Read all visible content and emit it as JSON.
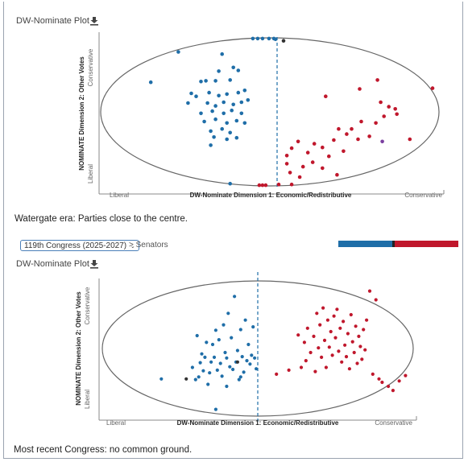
{
  "colors": {
    "democrat": "#1f6ea8",
    "republican": "#c0172c",
    "independent": "#333333",
    "other": "#7b3fa0",
    "ellipse": "#666666",
    "midline": "#1f6ea8",
    "bar_blue": "#1f6ea8",
    "bar_sep": "#222222",
    "bar_red": "#c0172c"
  },
  "plot1": {
    "title": "DW-Nominate Plot",
    "download_icon": "download-icon",
    "x_label": "DW-Nominate Dimension 1: Economic/Redistributive",
    "x_left": "Liberal",
    "x_right": "Conservative",
    "y_label": "NOMINATE Dimension 2: Other Votes",
    "y_top": "Conservative",
    "y_bottom": "Liberal",
    "caption": "Watergate era: Parties close to the centre."
  },
  "plot2": {
    "selector_value": "119th Congress (2025-2027)",
    "breadcrumb": "> Senators",
    "title": "DW-Nominate Plot",
    "download_icon": "download-icon",
    "x_label": "DW-Nominate Dimension 1: Economic/Redistributive",
    "x_left": "Liberal",
    "x_right": "Conservative",
    "y_label": "NOMINATE Dimension 2: Other Votes",
    "y_top": "Conservative",
    "y_bottom": "Liberal",
    "caption": "Most recent Congress: no common ground.",
    "party_split": {
      "democrat": 0.45,
      "independent": 0.02,
      "republican": 0.53
    }
  },
  "chart_data": [
    {
      "type": "scatter",
      "title": "DW-Nominate Plot",
      "xlabel": "DW-Nominate Dimension 1: Economic/Redistributive",
      "ylabel": "NOMINATE Dimension 2: Other Votes",
      "xlim": [
        -1,
        1
      ],
      "ylim": [
        -1,
        1
      ],
      "midline_x": 0.0,
      "boundary": "unit circle",
      "series": [
        {
          "party": "democrat",
          "points": [
            [
              -0.15,
              0.99
            ],
            [
              -0.12,
              0.99
            ],
            [
              -0.09,
              0.99
            ],
            [
              -0.05,
              0.99
            ],
            [
              -0.02,
              0.99
            ],
            [
              -0.01,
              0.98
            ],
            [
              -0.61,
              0.81
            ],
            [
              -0.34,
              0.78
            ],
            [
              -0.78,
              0.4
            ],
            [
              -0.47,
              0.41
            ],
            [
              -0.44,
              0.42
            ],
            [
              -0.38,
              0.42
            ],
            [
              -0.29,
              0.43
            ],
            [
              -0.53,
              0.25
            ],
            [
              -0.5,
              0.21
            ],
            [
              -0.42,
              0.26
            ],
            [
              -0.36,
              0.22
            ],
            [
              -0.31,
              0.24
            ],
            [
              -0.24,
              0.26
            ],
            [
              -0.2,
              0.29
            ],
            [
              -0.55,
              0.12
            ],
            [
              -0.43,
              0.12
            ],
            [
              -0.38,
              0.08
            ],
            [
              -0.33,
              0.13
            ],
            [
              -0.27,
              0.1
            ],
            [
              -0.22,
              0.13
            ],
            [
              -0.18,
              0.16
            ],
            [
              -0.47,
              -0.02
            ],
            [
              -0.4,
              0.01
            ],
            [
              -0.33,
              -0.02
            ],
            [
              -0.28,
              0.02
            ],
            [
              -0.22,
              -0.02
            ],
            [
              -0.45,
              -0.13
            ],
            [
              -0.38,
              -0.1
            ],
            [
              -0.31,
              -0.15
            ],
            [
              -0.25,
              -0.12
            ],
            [
              -0.2,
              -0.15
            ],
            [
              -0.41,
              -0.26
            ],
            [
              -0.34,
              -0.23
            ],
            [
              -0.29,
              -0.28
            ],
            [
              -0.39,
              -0.34
            ],
            [
              -0.31,
              -0.37
            ],
            [
              -0.25,
              -0.35
            ],
            [
              -0.41,
              -0.45
            ],
            [
              -0.29,
              -0.97
            ],
            [
              -0.24,
              0.56
            ],
            [
              -0.36,
              0.55
            ],
            [
              -0.27,
              0.6
            ]
          ]
        },
        {
          "party": "republican",
          "points": [
            [
              -0.11,
              -0.99
            ],
            [
              -0.09,
              -0.99
            ],
            [
              -0.07,
              -0.99
            ],
            [
              0.01,
              -0.98
            ],
            [
              0.09,
              -0.98
            ],
            [
              0.96,
              0.32
            ],
            [
              0.62,
              0.43
            ],
            [
              0.51,
              0.31
            ],
            [
              0.3,
              0.21
            ],
            [
              0.64,
              0.13
            ],
            [
              0.69,
              0.07
            ],
            [
              0.73,
              0.04
            ],
            [
              0.74,
              -0.03
            ],
            [
              0.66,
              -0.06
            ],
            [
              0.61,
              -0.15
            ],
            [
              0.52,
              -0.13
            ],
            [
              0.46,
              -0.23
            ],
            [
              0.43,
              -0.3
            ],
            [
              0.38,
              -0.23
            ],
            [
              0.35,
              -0.38
            ],
            [
              0.28,
              -0.48
            ],
            [
              0.23,
              -0.43
            ],
            [
              0.13,
              -0.4
            ],
            [
              0.09,
              -0.49
            ],
            [
              0.06,
              -0.59
            ],
            [
              0.06,
              -0.7
            ],
            [
              0.08,
              -0.82
            ],
            [
              0.16,
              -0.74
            ],
            [
              0.22,
              -0.68
            ],
            [
              0.28,
              -0.76
            ],
            [
              0.32,
              -0.6
            ],
            [
              0.41,
              -0.53
            ],
            [
              0.5,
              -0.37
            ],
            [
              0.57,
              -0.33
            ],
            [
              0.37,
              -0.85
            ],
            [
              0.82,
              -0.37
            ],
            [
              0.14,
              -0.88
            ],
            [
              0.19,
              -0.55
            ]
          ]
        },
        {
          "party": "independent",
          "points": [
            [
              0.04,
              0.96
            ]
          ]
        },
        {
          "party": "other",
          "points": [
            [
              0.65,
              -0.4
            ]
          ]
        }
      ]
    },
    {
      "type": "scatter",
      "title": "DW-Nominate Plot",
      "xlabel": "DW-Nominate Dimension 1: Economic/Redistributive",
      "ylabel": "NOMINATE Dimension 2: Other Votes",
      "xlim": [
        -1,
        1
      ],
      "ylim": [
        -1,
        1
      ],
      "midline_x": 0.0,
      "boundary": "unit circle",
      "series": [
        {
          "party": "democrat",
          "points": [
            [
              -0.62,
              -0.45
            ],
            [
              -0.42,
              -0.28
            ],
            [
              -0.4,
              -0.46
            ],
            [
              -0.39,
              0.19
            ],
            [
              -0.38,
              -0.42
            ],
            [
              -0.37,
              -0.21
            ],
            [
              -0.36,
              -0.08
            ],
            [
              -0.35,
              -0.33
            ],
            [
              -0.34,
              -0.13
            ],
            [
              -0.33,
              0.09
            ],
            [
              -0.32,
              -0.53
            ],
            [
              -0.31,
              -0.36
            ],
            [
              -0.3,
              -0.2
            ],
            [
              -0.29,
              0.06
            ],
            [
              -0.28,
              -0.13
            ],
            [
              -0.27,
              -0.9
            ],
            [
              -0.26,
              -0.32
            ],
            [
              -0.25,
              0.13
            ],
            [
              -0.24,
              -0.22
            ],
            [
              -0.23,
              -0.41
            ],
            [
              -0.22,
              0.35
            ],
            [
              -0.21,
              -0.06
            ],
            [
              -0.2,
              -0.14
            ],
            [
              -0.19,
              0.52
            ],
            [
              -0.18,
              -0.27
            ],
            [
              -0.17,
              0.16
            ],
            [
              -0.16,
              -0.31
            ],
            [
              -0.15,
              0.77
            ],
            [
              -0.14,
              -0.2
            ],
            [
              -0.13,
              -0.03
            ],
            [
              -0.12,
              -0.46
            ],
            [
              -0.11,
              0.28
            ],
            [
              -0.1,
              -0.12
            ],
            [
              -0.09,
              -0.35
            ],
            [
              -0.08,
              0.42
            ],
            [
              -0.07,
              -0.18
            ],
            [
              -0.06,
              0.06
            ],
            [
              -0.05,
              -0.23
            ],
            [
              -0.04,
              -0.1
            ],
            [
              -0.03,
              0.32
            ],
            [
              -0.02,
              -0.14
            ],
            [
              -0.01,
              -0.3
            ],
            [
              -0.2,
              -0.56
            ],
            [
              -0.11,
              -0.42
            ],
            [
              -0.27,
              0.27
            ]
          ]
        },
        {
          "party": "republican",
          "points": [
            [
              0.12,
              -0.38
            ],
            [
              0.2,
              -0.32
            ],
            [
              0.26,
              0.2
            ],
            [
              0.28,
              -0.28
            ],
            [
              0.3,
              0.09
            ],
            [
              0.31,
              -0.18
            ],
            [
              0.32,
              0.3
            ],
            [
              0.34,
              -0.06
            ],
            [
              0.36,
              0.18
            ],
            [
              0.37,
              -0.34
            ],
            [
              0.38,
              0.52
            ],
            [
              0.39,
              0.01
            ],
            [
              0.4,
              0.35
            ],
            [
              0.41,
              -0.13
            ],
            [
              0.42,
              0.6
            ],
            [
              0.43,
              0.12
            ],
            [
              0.44,
              -0.28
            ],
            [
              0.45,
              0.42
            ],
            [
              0.46,
              0.02
            ],
            [
              0.47,
              0.25
            ],
            [
              0.48,
              -0.1
            ],
            [
              0.49,
              0.48
            ],
            [
              0.5,
              0.16
            ],
            [
              0.51,
              0.58
            ],
            [
              0.52,
              -0.04
            ],
            [
              0.53,
              0.3
            ],
            [
              0.54,
              -0.2
            ],
            [
              0.55,
              0.4
            ],
            [
              0.56,
              0.05
            ],
            [
              0.57,
              -0.12
            ],
            [
              0.58,
              0.22
            ],
            [
              0.59,
              -0.3
            ],
            [
              0.6,
              0.5
            ],
            [
              0.61,
              0.1
            ],
            [
              0.62,
              -0.06
            ],
            [
              0.63,
              0.33
            ],
            [
              0.64,
              -0.22
            ],
            [
              0.65,
              0.18
            ],
            [
              0.66,
              0.03
            ],
            [
              0.67,
              -0.16
            ],
            [
              0.68,
              0.28
            ],
            [
              0.69,
              -0.02
            ],
            [
              0.7,
              0.42
            ],
            [
              0.72,
              0.85
            ],
            [
              0.74,
              -0.38
            ],
            [
              0.76,
              0.72
            ],
            [
              0.78,
              -0.45
            ],
            [
              0.8,
              -0.5
            ],
            [
              0.84,
              -0.56
            ],
            [
              0.87,
              -0.62
            ],
            [
              0.91,
              -0.48
            ],
            [
              0.95,
              -0.4
            ]
          ]
        },
        {
          "party": "independent",
          "points": [
            [
              -0.46,
              -0.45
            ],
            [
              -0.13,
              -0.2
            ]
          ]
        }
      ]
    }
  ]
}
